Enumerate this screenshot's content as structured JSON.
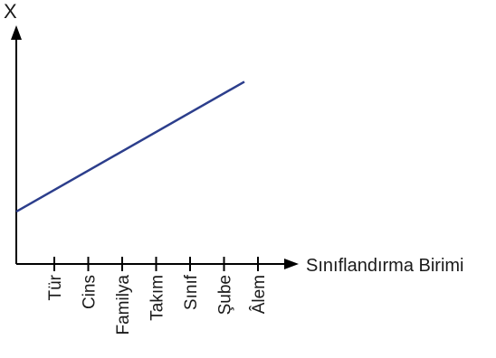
{
  "chart_data": {
    "type": "line",
    "title": "",
    "xlabel": "Sınıflandırma Birimi",
    "ylabel": "X",
    "categories": [
      "Tür",
      "Cins",
      "Familya",
      "Takım",
      "Sınıf",
      "Şube",
      "Âlem"
    ],
    "ylim": [
      0,
      10
    ],
    "yticks": "none",
    "grid": false,
    "legend": "none",
    "series": [
      {
        "color": "#2c3e8c",
        "x": [
          0,
          6.72
        ],
        "y": [
          2.3,
          8.0
        ],
        "note_x": "x in category-index units, Tür = 1, Âlem = 7, origin at the y-axis"
      }
    ],
    "colors": {
      "axis": "#000000",
      "line": "#2c3e8c",
      "text": "#1a1a1a"
    }
  }
}
